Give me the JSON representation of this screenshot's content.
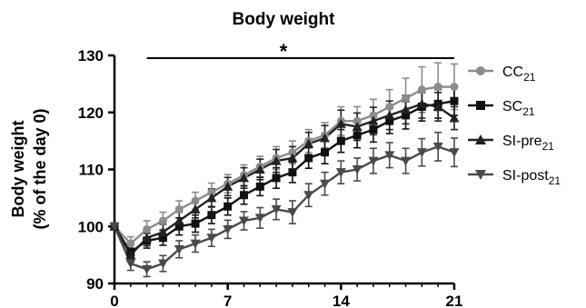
{
  "chart_data": {
    "type": "line",
    "title": "Body weight",
    "xlabel": "",
    "ylabel_line1": "Body weight",
    "ylabel_line2": "(% of the day 0)",
    "xlim": [
      0,
      21
    ],
    "ylim": [
      90,
      130
    ],
    "xticks": [
      0,
      7,
      14,
      21
    ],
    "yticks": [
      90,
      100,
      110,
      120,
      130
    ],
    "significance": {
      "symbol": "*",
      "from_day": 2,
      "to_day": 21
    },
    "legend_position": "right",
    "x": [
      0,
      1,
      2,
      3,
      4,
      5,
      6,
      7,
      8,
      9,
      10,
      11,
      12,
      13,
      14,
      15,
      16,
      17,
      18,
      19,
      20,
      21
    ],
    "series": [
      {
        "name": "CC",
        "subscript": "21",
        "color": "#8c8c8c",
        "marker": "circle",
        "values": [
          100,
          97,
          99.5,
          101,
          103,
          104.5,
          106,
          107.5,
          109,
          110.5,
          112,
          113,
          115,
          116,
          118.5,
          118.5,
          119.5,
          121,
          122.5,
          124,
          124.5,
          124.5
        ],
        "errors": [
          0.5,
          1.2,
          1.5,
          1.5,
          1.5,
          1.5,
          1.6,
          1.6,
          1.8,
          1.8,
          2,
          2,
          2,
          2.2,
          2.5,
          2.5,
          2.8,
          3,
          3.5,
          4,
          4.2,
          4
        ]
      },
      {
        "name": "SC",
        "subscript": "21",
        "color": "#111111",
        "marker": "square",
        "values": [
          100,
          95.5,
          97.5,
          98,
          100,
          100.5,
          102,
          103.5,
          105.5,
          107,
          108.5,
          109.5,
          112,
          113,
          115,
          116,
          117,
          118.5,
          119.5,
          121,
          121.5,
          122
        ],
        "errors": [
          0.5,
          1.2,
          1.3,
          1.3,
          1.5,
          1.5,
          1.5,
          1.5,
          1.6,
          1.6,
          1.8,
          1.8,
          1.8,
          2,
          2,
          2.2,
          2.2,
          2.2,
          2.4,
          2.5,
          2.5,
          2.5
        ]
      },
      {
        "name": "SI-pre",
        "subscript": "21",
        "color": "#222222",
        "marker": "triangle-up",
        "values": [
          100,
          95,
          98,
          99,
          101,
          103,
          105,
          107,
          108.5,
          110,
          111.5,
          112,
          114.5,
          115.5,
          118,
          117.5,
          118.5,
          119.5,
          120.5,
          121.5,
          121,
          119
        ],
        "errors": [
          0.5,
          1.2,
          1.4,
          1.4,
          1.5,
          1.5,
          1.6,
          1.6,
          1.8,
          1.8,
          2,
          2,
          2,
          2.2,
          2.4,
          2.4,
          2.4,
          2.5,
          2.5,
          2.5,
          2.5,
          2
        ]
      },
      {
        "name": "SI-post",
        "subscript": "21",
        "color": "#4a4a4a",
        "marker": "triangle-down",
        "values": [
          100,
          93.5,
          92.5,
          93.5,
          96,
          97,
          98,
          99.5,
          101,
          101.5,
          103,
          102.5,
          105.5,
          107.5,
          109.5,
          110,
          111.5,
          112.5,
          111.5,
          113,
          114,
          113
        ],
        "errors": [
          0.5,
          1.2,
          1.3,
          1.4,
          1.5,
          1.5,
          1.5,
          1.6,
          1.6,
          1.8,
          1.8,
          2,
          2,
          2,
          2,
          2,
          2.2,
          2.2,
          2.2,
          2.4,
          2.5,
          2.5
        ]
      }
    ]
  }
}
